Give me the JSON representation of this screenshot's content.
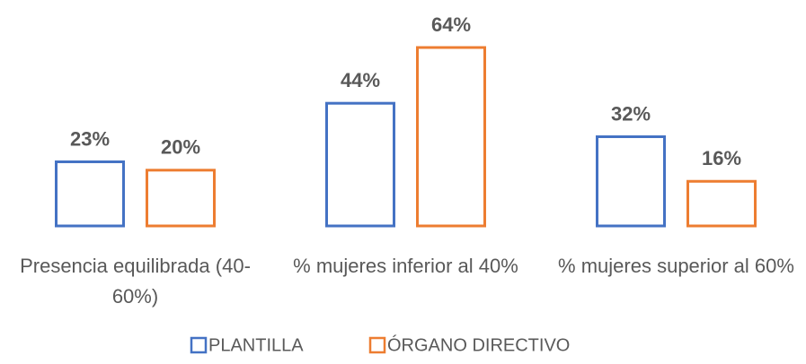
{
  "chart_data": {
    "type": "bar",
    "categories": [
      "Presencia equilibrada (40-60%)",
      "% mujeres inferior al 40%",
      "% mujeres superior al 60%"
    ],
    "series": [
      {
        "name": "PLANTILLA",
        "color": "#4472c4",
        "values": [
          23,
          44,
          32
        ],
        "value_labels": [
          "23%",
          "44%",
          "32%"
        ]
      },
      {
        "name": "ÓRGANO DIRECTIVO",
        "color": "#ed7d31",
        "values": [
          20,
          64,
          16
        ],
        "value_labels": [
          "20%",
          "64%",
          "16%"
        ]
      }
    ],
    "legend": "bottom"
  }
}
